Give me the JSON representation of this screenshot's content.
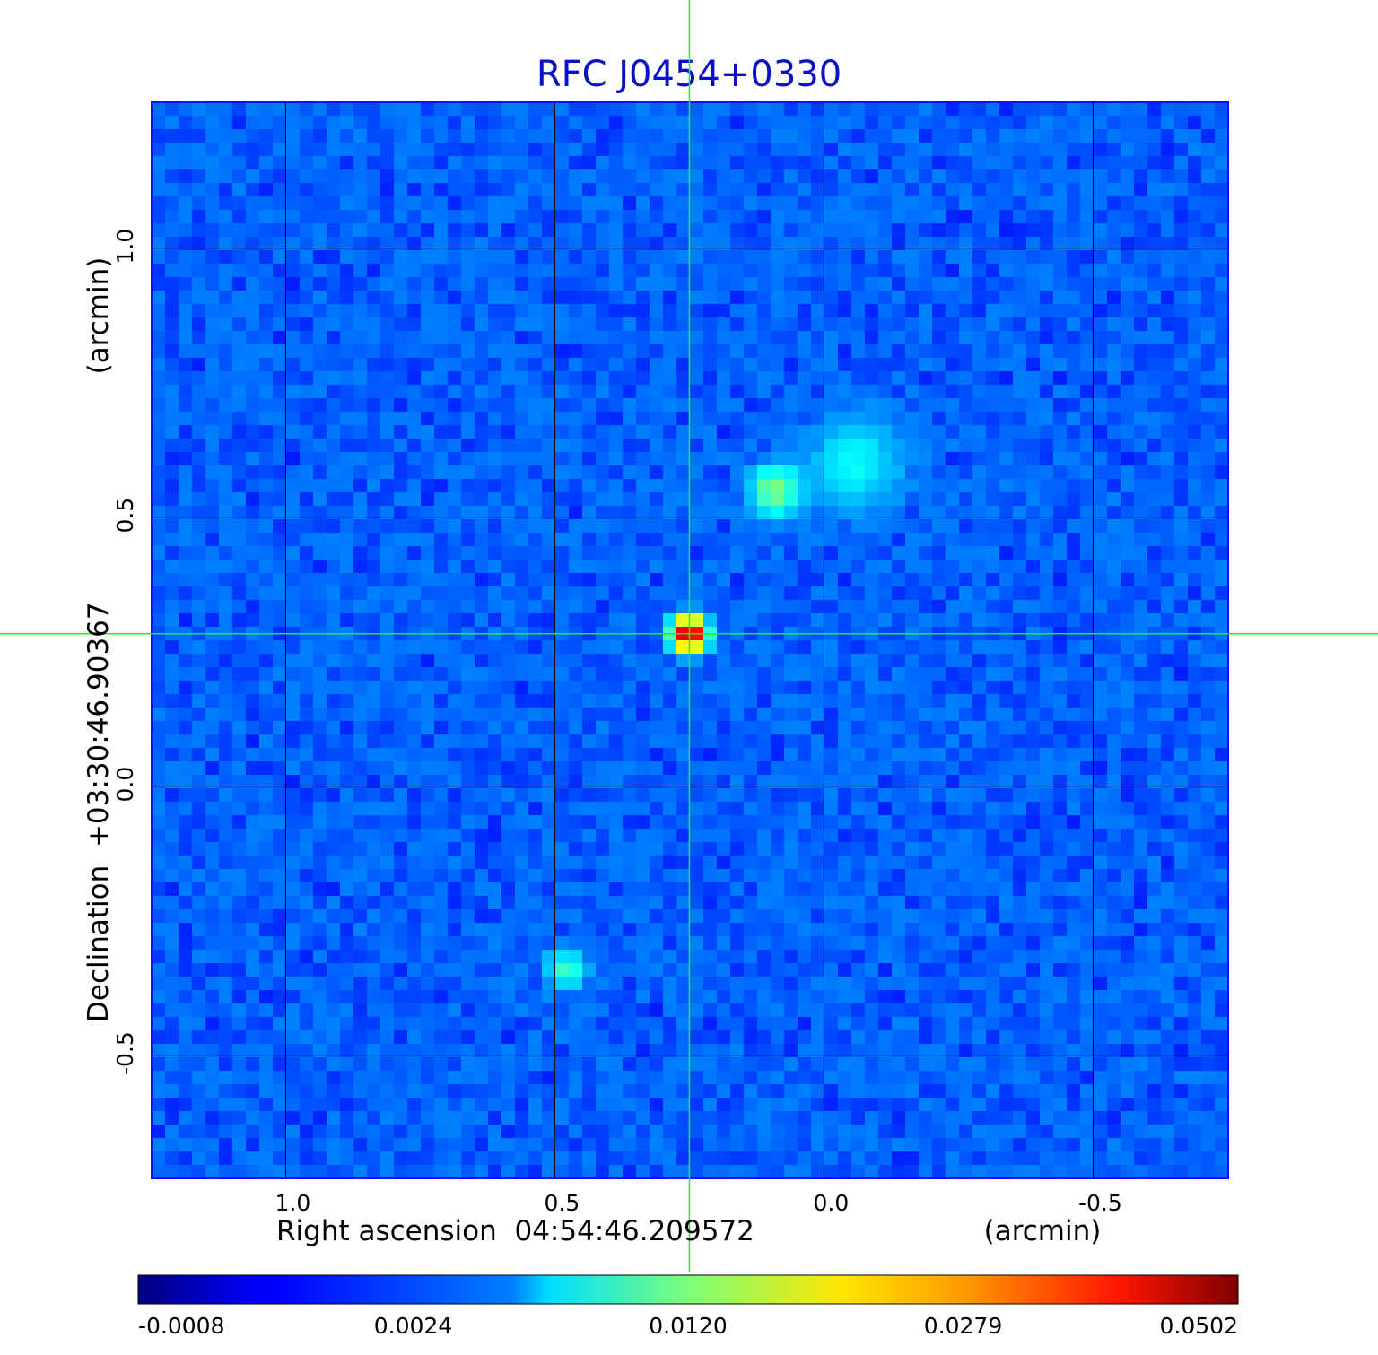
{
  "chart_data": {
    "type": "heatmap",
    "title": "RFC J0454+0330",
    "xlabel": "Right ascension  04:54:46.209572",
    "xunit": "(arcmin)",
    "ylabel": "Declination  +03:30:46.90367",
    "yunit": "(arcmin)",
    "xlim": [
      1.249,
      -0.751
    ],
    "ylim": [
      -0.729,
      1.271
    ],
    "x_ticks": [
      {
        "value": 1.0,
        "label": "1.0"
      },
      {
        "value": 0.5,
        "label": "0.5"
      },
      {
        "value": 0.0,
        "label": "0.0"
      },
      {
        "value": -0.5,
        "label": "-0.5"
      }
    ],
    "y_ticks": [
      {
        "value": 1.0,
        "label": "1.0"
      },
      {
        "value": 0.5,
        "label": "0.5"
      },
      {
        "value": 0.0,
        "label": "0.0"
      },
      {
        "value": -0.5,
        "label": "-0.5"
      }
    ],
    "grid": true,
    "crosshair": {
      "x": 0.25,
      "y": 0.283,
      "color": "#2ee82e"
    },
    "colorbar": {
      "orientation": "horizontal",
      "placement": "bottom",
      "colormap": "jet",
      "tick_labels": [
        "-0.0008",
        "0.0024",
        "0.0120",
        "0.0279",
        "0.0502"
      ]
    },
    "background_level": -0.0004,
    "sources": [
      {
        "x": 0.25,
        "y": 0.283,
        "peak": 0.0502,
        "sigma": 0.018
      },
      {
        "x": 0.09,
        "y": 0.55,
        "peak": 0.009,
        "sigma": 0.028
      },
      {
        "x": -0.06,
        "y": 0.6,
        "peak": 0.0035,
        "sigma": 0.05
      },
      {
        "x": 0.48,
        "y": -0.34,
        "peak": 0.0055,
        "sigma": 0.022
      }
    ]
  }
}
